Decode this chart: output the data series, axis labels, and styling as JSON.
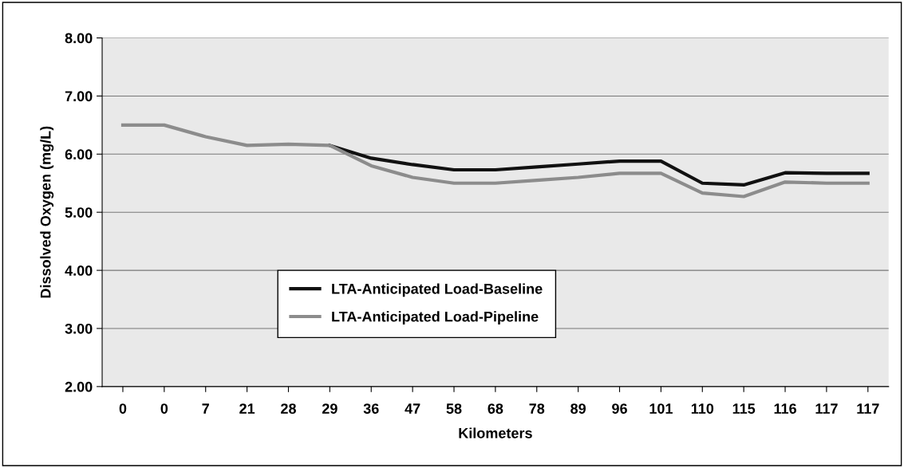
{
  "chart_data": {
    "type": "line",
    "xlabel": "Kilometers",
    "ylabel": "Dissolved Oxygen (mg/L)",
    "categories": [
      "0",
      "0",
      "7",
      "21",
      "28",
      "29",
      "36",
      "47",
      "58",
      "68",
      "78",
      "89",
      "96",
      "101",
      "110",
      "115",
      "116",
      "117",
      "117"
    ],
    "series": [
      {
        "name": "LTA-Anticipated Load-Baseline",
        "color": "#111111",
        "values": [
          null,
          null,
          null,
          null,
          null,
          6.15,
          5.93,
          5.82,
          5.73,
          5.73,
          5.78,
          5.83,
          5.88,
          5.88,
          5.5,
          5.47,
          5.68,
          5.67,
          5.67
        ]
      },
      {
        "name": "LTA-Anticipated Load-Pipeline",
        "color": "#8c8c8c",
        "values": [
          6.5,
          6.5,
          6.3,
          6.15,
          6.17,
          6.15,
          5.8,
          5.6,
          5.5,
          5.5,
          5.55,
          5.6,
          5.67,
          5.67,
          5.33,
          5.27,
          5.52,
          5.5,
          5.5
        ]
      }
    ],
    "ylim": [
      2,
      8
    ],
    "yticks": [
      {
        "value": 2,
        "label": "2.00"
      },
      {
        "value": 3,
        "label": "3.00"
      },
      {
        "value": 4,
        "label": "4.00"
      },
      {
        "value": 5,
        "label": "5.00"
      },
      {
        "value": 6,
        "label": "6.00"
      },
      {
        "value": 7,
        "label": "7.00"
      },
      {
        "value": 8,
        "label": "8.00"
      }
    ],
    "grid": "y",
    "legend": "bottom",
    "marker": "none",
    "line_style": "solid"
  }
}
